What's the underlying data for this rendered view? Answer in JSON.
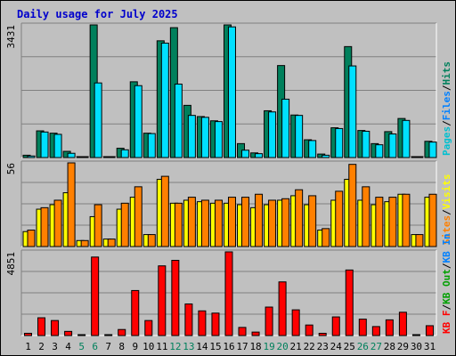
{
  "title": "Daily usage for July 2025",
  "colors": {
    "hits": "#00805c",
    "files": "#00e0ff",
    "pages": "#00c0d0",
    "visits": "#ffff00",
    "sites": "#ff8000",
    "kbin": "#0080ff",
    "kbout": "#00a000",
    "kbf": "#ff0000",
    "weekend": "#00805c",
    "weekday": "#000000"
  },
  "legend_top": [
    {
      "text": "Pages",
      "color": "#00c0d0"
    },
    {
      "text": "/",
      "color": "#000000"
    },
    {
      "text": "Files",
      "color": "#0080ff"
    },
    {
      "text": "/",
      "color": "#000000"
    },
    {
      "text": "Hits",
      "color": "#00805c"
    }
  ],
  "legend_mid": [
    {
      "text": "Sites",
      "color": "#ff8000"
    },
    {
      "text": "/",
      "color": "#000000"
    },
    {
      "text": "Visits",
      "color": "#ffff00"
    }
  ],
  "legend_bot": [
    {
      "text": "KB F",
      "color": "#ff0000"
    },
    {
      "text": "/",
      "color": "#000000"
    },
    {
      "text": "KB Out",
      "color": "#00a000"
    },
    {
      "text": "/",
      "color": "#000000"
    },
    {
      "text": "KB In",
      "color": "#0080ff"
    }
  ],
  "chart_data": [
    {
      "type": "bar",
      "title": "Daily usage for July 2025",
      "panel": "top",
      "ymax_label": "3431",
      "ylim": [
        0,
        3431
      ],
      "categories": [
        "1",
        "2",
        "3",
        "4",
        "5",
        "6",
        "7",
        "8",
        "9",
        "10",
        "11",
        "12",
        "13",
        "14",
        "15",
        "16",
        "17",
        "18",
        "19",
        "20",
        "21",
        "22",
        "23",
        "24",
        "25",
        "26",
        "27",
        "28",
        "29",
        "30",
        "31"
      ],
      "series": [
        {
          "name": "Hits",
          "values": [
            60,
            690,
            630,
            160,
            20,
            3431,
            20,
            240,
            1960,
            630,
            3020,
            3360,
            1350,
            1060,
            950,
            3431,
            360,
            120,
            1210,
            2380,
            1100,
            460,
            90,
            770,
            2870,
            700,
            360,
            670,
            1010,
            20,
            420
          ]
        },
        {
          "name": "Files",
          "values": [
            40,
            660,
            600,
            110,
            10,
            1930,
            10,
            200,
            1860,
            620,
            2960,
            1900,
            1090,
            1040,
            930,
            3380,
            190,
            100,
            1180,
            1510,
            1090,
            440,
            60,
            750,
            2370,
            680,
            330,
            610,
            960,
            10,
            400
          ]
        },
        {
          "name": "Pages",
          "values": [
            30,
            640,
            580,
            100,
            10,
            1900,
            10,
            190,
            1840,
            600,
            2940,
            1880,
            1070,
            1020,
            910,
            3360,
            180,
            90,
            1160,
            1490,
            1070,
            420,
            50,
            730,
            2350,
            660,
            310,
            590,
            940,
            10,
            380
          ]
        }
      ]
    },
    {
      "type": "bar",
      "panel": "middle",
      "ymax_label": "56",
      "ylim": [
        0,
        56
      ],
      "categories": [
        "1",
        "2",
        "3",
        "4",
        "5",
        "6",
        "7",
        "8",
        "9",
        "10",
        "11",
        "12",
        "13",
        "14",
        "15",
        "16",
        "17",
        "18",
        "19",
        "20",
        "21",
        "22",
        "23",
        "24",
        "25",
        "26",
        "27",
        "28",
        "29",
        "30",
        "31"
      ],
      "series": [
        {
          "name": "Visits",
          "values": [
            10,
            25,
            28,
            36,
            4,
            20,
            5,
            25,
            33,
            8,
            45,
            29,
            31,
            30,
            29,
            29,
            28,
            26,
            28,
            31,
            34,
            28,
            11,
            31,
            45,
            31,
            28,
            30,
            35,
            8,
            33
          ]
        },
        {
          "name": "Sites",
          "values": [
            11,
            26,
            31,
            56,
            4,
            28,
            5,
            29,
            40,
            8,
            47,
            29,
            33,
            31,
            31,
            33,
            33,
            35,
            31,
            32,
            38,
            34,
            12,
            37,
            55,
            40,
            33,
            33,
            35,
            8,
            35
          ]
        }
      ]
    },
    {
      "type": "bar",
      "panel": "bottom",
      "ymax_label": "4851",
      "ylim": [
        0,
        4851
      ],
      "categories": [
        "1",
        "2",
        "3",
        "4",
        "5",
        "6",
        "7",
        "8",
        "9",
        "10",
        "11",
        "12",
        "13",
        "14",
        "15",
        "16",
        "17",
        "18",
        "19",
        "20",
        "21",
        "22",
        "23",
        "24",
        "25",
        "26",
        "27",
        "28",
        "29",
        "30",
        "31"
      ],
      "series": [
        {
          "name": "KB F",
          "values": [
            130,
            1030,
            870,
            240,
            40,
            4551,
            40,
            350,
            2610,
            870,
            4040,
            4360,
            1830,
            1430,
            1300,
            4851,
            470,
            200,
            1650,
            3110,
            1490,
            610,
            130,
            1080,
            3800,
            950,
            520,
            910,
            1350,
            40,
            570
          ]
        }
      ]
    }
  ],
  "x_weekend_days": [
    5,
    6,
    12,
    13,
    19,
    20,
    26,
    27
  ]
}
